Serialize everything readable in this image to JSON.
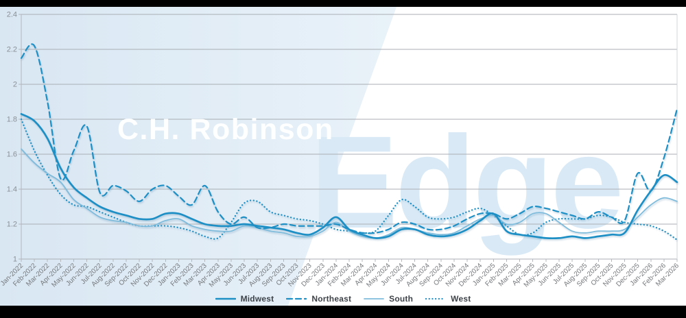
{
  "watermarks": {
    "brand": "C.H. Robinson",
    "product": "Edge"
  },
  "colors": {
    "line_blue": "#1E8FC4",
    "south_blue": "#7FBBDB",
    "bg_left": "#d9e7f3",
    "bg_right": "#e9f2f9",
    "grid": "#a9aeb3",
    "axis_line": "#b3b7bb",
    "plot_right_border": "#d2d5d8",
    "axis_text": "#75787b",
    "legend_text": "#3d4248",
    "watermark_product": "#d9eaf6",
    "letterbox": "#000000"
  },
  "chart_data": {
    "type": "line",
    "title": "",
    "xlabel": "",
    "ylabel": "",
    "ylim": [
      1,
      2.4
    ],
    "yticks": [
      1,
      1.2,
      1.4,
      1.6,
      1.8,
      2,
      2.2,
      2.4
    ],
    "ytick_labels": [
      "1",
      "1.2",
      "1.4",
      "1.6",
      "1.8",
      "2",
      "2.2",
      "2.4"
    ],
    "grid": "horizontal",
    "legend_position": "bottom",
    "categories": [
      "Jan-2022",
      "Feb-2022",
      "Mar-2022",
      "Apr-2022",
      "May-2022",
      "Jun-2022",
      "Jul-2022",
      "Aug-2022",
      "Sep-2022",
      "Oct-2022",
      "Nov-2022",
      "Dec-2022",
      "Jan-2023",
      "Feb-2023",
      "Mar-2023",
      "Apr-2023",
      "May-2023",
      "Jun-2023",
      "Jul-2023",
      "Aug-2023",
      "Sep-2023",
      "Oct-2023",
      "Nov-2023",
      "Dec-2023",
      "Jan-2024",
      "Feb-2024",
      "Mar-2024",
      "Apr-2024",
      "May-2024",
      "Jun-2024",
      "Jul-2024",
      "Aug-2024",
      "Sep-2024",
      "Oct-2024",
      "Nov-2024",
      "Dec-2024",
      "Jan-2025",
      "Feb-2025",
      "Mar-2025",
      "Apr-2025",
      "May-2025",
      "Jun-2025",
      "Jul-2025",
      "Aug-2025",
      "Sep-2025",
      "Oct-2025",
      "Nov-2025",
      "Dec-2025",
      "Jan-2026",
      "Feb-2026",
      "Mar-2026"
    ],
    "series": [
      {
        "name": "West",
        "style": "dotted",
        "color": "#1E8FC4",
        "width": 2.3,
        "values": [
          1.8,
          1.62,
          1.48,
          1.37,
          1.31,
          1.3,
          1.27,
          1.24,
          1.21,
          1.19,
          1.19,
          1.19,
          1.18,
          1.16,
          1.13,
          1.12,
          1.21,
          1.32,
          1.33,
          1.27,
          1.25,
          1.23,
          1.22,
          1.2,
          1.17,
          1.16,
          1.15,
          1.16,
          1.25,
          1.34,
          1.3,
          1.24,
          1.23,
          1.24,
          1.27,
          1.29,
          1.25,
          1.19,
          1.14,
          1.15,
          1.21,
          1.23,
          1.23,
          1.23,
          1.25,
          1.24,
          1.21,
          1.2,
          1.19,
          1.16,
          1.11
        ]
      },
      {
        "name": "South",
        "style": "solid",
        "color": "#7FBBDB",
        "width": 1.8,
        "values": [
          1.63,
          1.55,
          1.49,
          1.44,
          1.34,
          1.29,
          1.24,
          1.22,
          1.21,
          1.19,
          1.19,
          1.22,
          1.23,
          1.19,
          1.17,
          1.16,
          1.16,
          1.19,
          1.18,
          1.16,
          1.15,
          1.13,
          1.13,
          1.16,
          1.21,
          1.16,
          1.13,
          1.12,
          1.14,
          1.18,
          1.17,
          1.15,
          1.14,
          1.15,
          1.19,
          1.23,
          1.25,
          1.2,
          1.21,
          1.26,
          1.26,
          1.21,
          1.16,
          1.15,
          1.16,
          1.16,
          1.17,
          1.24,
          1.31,
          1.35,
          1.33
        ]
      },
      {
        "name": "Northeast",
        "style": "dashed",
        "color": "#1E8FC4",
        "width": 2.2,
        "values": [
          2.15,
          2.22,
          1.9,
          1.46,
          1.62,
          1.76,
          1.38,
          1.42,
          1.39,
          1.33,
          1.4,
          1.42,
          1.36,
          1.31,
          1.42,
          1.27,
          1.2,
          1.24,
          1.18,
          1.18,
          1.2,
          1.19,
          1.19,
          1.19,
          1.2,
          1.17,
          1.15,
          1.15,
          1.17,
          1.21,
          1.2,
          1.17,
          1.17,
          1.19,
          1.23,
          1.26,
          1.26,
          1.23,
          1.26,
          1.3,
          1.29,
          1.27,
          1.25,
          1.23,
          1.27,
          1.24,
          1.22,
          1.49,
          1.39,
          1.58,
          1.86
        ]
      },
      {
        "name": "Midwest",
        "style": "solid",
        "color": "#1E8FC4",
        "width": 2.7,
        "values": [
          1.83,
          1.79,
          1.69,
          1.52,
          1.41,
          1.35,
          1.3,
          1.27,
          1.25,
          1.23,
          1.23,
          1.26,
          1.26,
          1.23,
          1.2,
          1.19,
          1.19,
          1.2,
          1.19,
          1.18,
          1.17,
          1.15,
          1.14,
          1.18,
          1.24,
          1.17,
          1.14,
          1.12,
          1.13,
          1.17,
          1.17,
          1.14,
          1.13,
          1.14,
          1.17,
          1.22,
          1.26,
          1.16,
          1.14,
          1.13,
          1.12,
          1.12,
          1.13,
          1.12,
          1.13,
          1.14,
          1.15,
          1.28,
          1.39,
          1.48,
          1.44
        ]
      }
    ],
    "legend_order": [
      "Midwest",
      "Northeast",
      "South",
      "West"
    ]
  }
}
